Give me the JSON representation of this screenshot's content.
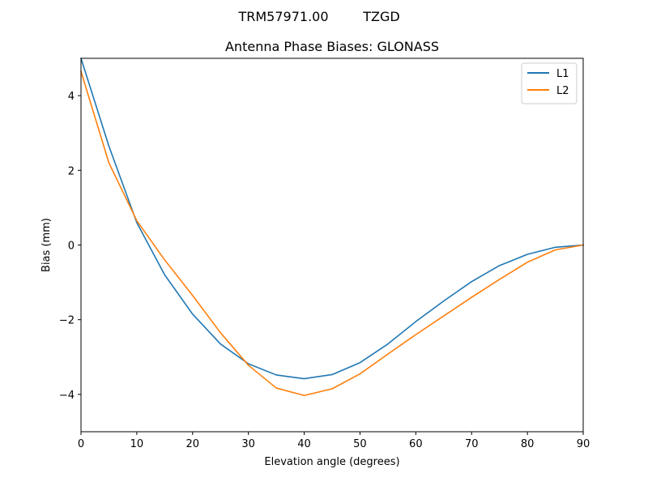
{
  "figure": {
    "suptitle_left": "TRM57971.00",
    "suptitle_right": "TZGD"
  },
  "chart_data": {
    "type": "line",
    "title": "Antenna Phase Biases: GLONASS",
    "xlabel": "Elevation angle (degrees)",
    "ylabel": "Bias (mm)",
    "xlim": [
      0,
      90
    ],
    "ylim": [
      -5,
      5
    ],
    "xticks": [
      0,
      10,
      20,
      30,
      40,
      50,
      60,
      70,
      80,
      90
    ],
    "yticks": [
      -4,
      -2,
      0,
      2,
      4
    ],
    "ytick_labels": [
      "−4",
      "−2",
      "0",
      "2",
      "4"
    ],
    "grid": false,
    "legend_position": "top-right",
    "x": [
      0,
      5,
      10,
      15,
      20,
      25,
      30,
      35,
      40,
      45,
      50,
      55,
      60,
      65,
      70,
      75,
      80,
      85,
      90
    ],
    "series": [
      {
        "name": "L1",
        "color": "#1f77b4",
        "values": [
          5.0,
          2.65,
          0.6,
          -0.8,
          -1.85,
          -2.65,
          -3.18,
          -3.48,
          -3.58,
          -3.47,
          -3.15,
          -2.65,
          -2.05,
          -1.5,
          -0.98,
          -0.55,
          -0.25,
          -0.06,
          0.0
        ]
      },
      {
        "name": "L2",
        "color": "#ff7f0e",
        "values": [
          4.65,
          2.2,
          0.65,
          -0.4,
          -1.35,
          -2.35,
          -3.22,
          -3.83,
          -4.03,
          -3.85,
          -3.45,
          -2.92,
          -2.4,
          -1.9,
          -1.4,
          -0.92,
          -0.46,
          -0.13,
          0.0
        ]
      }
    ]
  }
}
